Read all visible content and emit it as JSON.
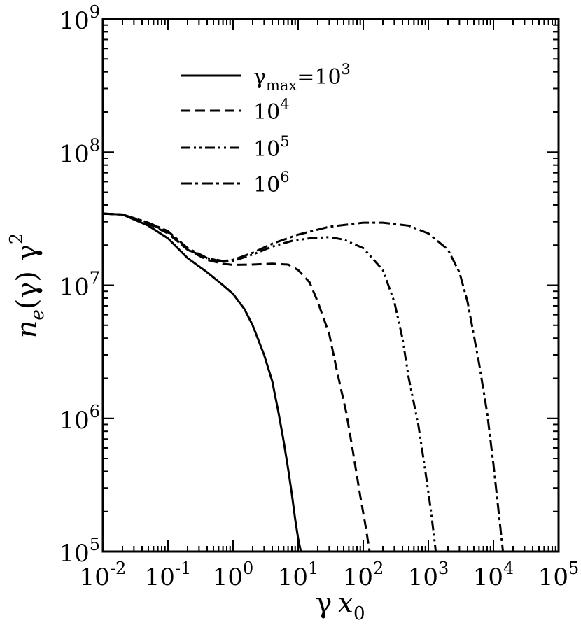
{
  "chart_data": {
    "type": "line",
    "x_scale": "log",
    "y_scale": "log",
    "xlim": [
      0.01,
      100000
    ],
    "ylim": [
      100000,
      1000000000
    ],
    "grid": false,
    "legend_position": "top-left",
    "xlabel": {
      "base": "γ",
      "var": "x",
      "sub": "0"
    },
    "ylabel": {
      "var": "n",
      "sub": "e",
      "arg": "(γ)",
      "mult": "γ",
      "sup": "2"
    },
    "x_ticks": [
      {
        "value": 0.01,
        "base": "10",
        "exp": "-2"
      },
      {
        "value": 0.1,
        "base": "10",
        "exp": "-1"
      },
      {
        "value": 1,
        "base": "10",
        "exp": "0"
      },
      {
        "value": 10,
        "base": "10",
        "exp": "1"
      },
      {
        "value": 100,
        "base": "10",
        "exp": "2"
      },
      {
        "value": 1000,
        "base": "10",
        "exp": "3"
      },
      {
        "value": 10000,
        "base": "10",
        "exp": "4"
      },
      {
        "value": 100000,
        "base": "10",
        "exp": "5"
      }
    ],
    "y_ticks": [
      {
        "value": 100000,
        "base": "10",
        "exp": "5"
      },
      {
        "value": 1000000,
        "base": "10",
        "exp": "6"
      },
      {
        "value": 10000000,
        "base": "10",
        "exp": "7"
      },
      {
        "value": 100000000,
        "base": "10",
        "exp": "8"
      },
      {
        "value": 1000000000,
        "base": "10",
        "exp": "9"
      }
    ],
    "series": [
      {
        "legend": {
          "pre": "γ",
          "sub": "max",
          "mid": "=10",
          "sup": "3"
        },
        "dash": "solid",
        "points": [
          [
            0.01,
            34500000.0
          ],
          [
            0.02,
            34000000.0
          ],
          [
            0.05,
            28000000.0
          ],
          [
            0.1,
            22500000.0
          ],
          [
            0.2,
            16000000.0
          ],
          [
            0.4,
            12500000.0
          ],
          [
            0.7,
            10000000.0
          ],
          [
            1.0,
            8600000.0
          ],
          [
            1.5,
            6600000.0
          ],
          [
            2.0,
            5000000.0
          ],
          [
            3.0,
            3000000.0
          ],
          [
            4.0,
            1900000.0
          ],
          [
            5.0,
            1100000.0
          ],
          [
            6.0,
            670000.0
          ],
          [
            7.0,
            420000.0
          ],
          [
            8.0,
            270000.0
          ],
          [
            9.0,
            175000.0
          ],
          [
            10.0,
            125000.0
          ],
          [
            11.0,
            100000.0
          ]
        ]
      },
      {
        "legend": {
          "pre": "",
          "sub": "",
          "mid": "10",
          "sup": "4"
        },
        "dash": "dashed",
        "points": [
          [
            0.01,
            34500000.0
          ],
          [
            0.02,
            34000000.0
          ],
          [
            0.05,
            29000000.0
          ],
          [
            0.1,
            24500000.0
          ],
          [
            0.2,
            18500000.0
          ],
          [
            0.4,
            15500000.0
          ],
          [
            0.7,
            14500000.0
          ],
          [
            1.0,
            14200000.0
          ],
          [
            2.0,
            14300000.0
          ],
          [
            4.0,
            14500000.0
          ],
          [
            7.0,
            14300000.0
          ],
          [
            10.0,
            13000000.0
          ],
          [
            15.0,
            10500000.0
          ],
          [
            20.0,
            7500000.0
          ],
          [
            30.0,
            4300000.0
          ],
          [
            40.0,
            2200000.0
          ],
          [
            55.0,
            1100000.0
          ],
          [
            70.0,
            550000.0
          ],
          [
            90.0,
            260000.0
          ],
          [
            110.0,
            150000.0
          ],
          [
            125.0,
            100000.0
          ]
        ]
      },
      {
        "legend": {
          "pre": "",
          "sub": "",
          "mid": "10",
          "sup": "5"
        },
        "dash": "dash-dot-dot",
        "points": [
          [
            0.01,
            34500000.0
          ],
          [
            0.02,
            34000000.0
          ],
          [
            0.05,
            29500000.0
          ],
          [
            0.1,
            25000000.0
          ],
          [
            0.2,
            18500000.0
          ],
          [
            0.4,
            16000000.0
          ],
          [
            0.7,
            15000000.0
          ],
          [
            1.0,
            15200000.0
          ],
          [
            2.0,
            17000000.0
          ],
          [
            4.0,
            19500000.0
          ],
          [
            8.0,
            21500000.0
          ],
          [
            15.0,
            22500000.0
          ],
          [
            30.0,
            23000000.0
          ],
          [
            50.0,
            22000000.0
          ],
          [
            100.0,
            19000000.0
          ],
          [
            200.0,
            13000000.0
          ],
          [
            300.0,
            7500000.0
          ],
          [
            400.0,
            4000000.0
          ],
          [
            500.0,
            2000000.0
          ],
          [
            700.0,
            900000.0
          ],
          [
            900.0,
            400000.0
          ],
          [
            1100.0,
            200000.0
          ],
          [
            1300.0,
            100000.0
          ]
        ]
      },
      {
        "legend": {
          "pre": "",
          "sub": "",
          "mid": "10",
          "sup": "6"
        },
        "dash": "dash-dot",
        "points": [
          [
            0.01,
            34500000.0
          ],
          [
            0.02,
            34000000.0
          ],
          [
            0.05,
            29500000.0
          ],
          [
            0.1,
            25500000.0
          ],
          [
            0.2,
            19000000.0
          ],
          [
            0.4,
            16000000.0
          ],
          [
            0.7,
            15200000.0
          ],
          [
            1.0,
            15500000.0
          ],
          [
            2.0,
            17500000.0
          ],
          [
            4.0,
            20500000.0
          ],
          [
            10.0,
            24000000.0
          ],
          [
            30.0,
            27500000.0
          ],
          [
            100.0,
            29500000.0
          ],
          [
            200.0,
            29500000.0
          ],
          [
            500.0,
            28000000.0
          ],
          [
            1000.0,
            24500000.0
          ],
          [
            2000.0,
            18500000.0
          ],
          [
            3000.0,
            12500000.0
          ],
          [
            4000.0,
            7500000.0
          ],
          [
            5000.0,
            4200000.0
          ],
          [
            6000.0,
            2600000.0
          ],
          [
            8000.0,
            1100000.0
          ],
          [
            10000.0,
            450000.0
          ],
          [
            12000.0,
            200000.0
          ],
          [
            14000.0,
            100000.0
          ]
        ]
      }
    ]
  }
}
